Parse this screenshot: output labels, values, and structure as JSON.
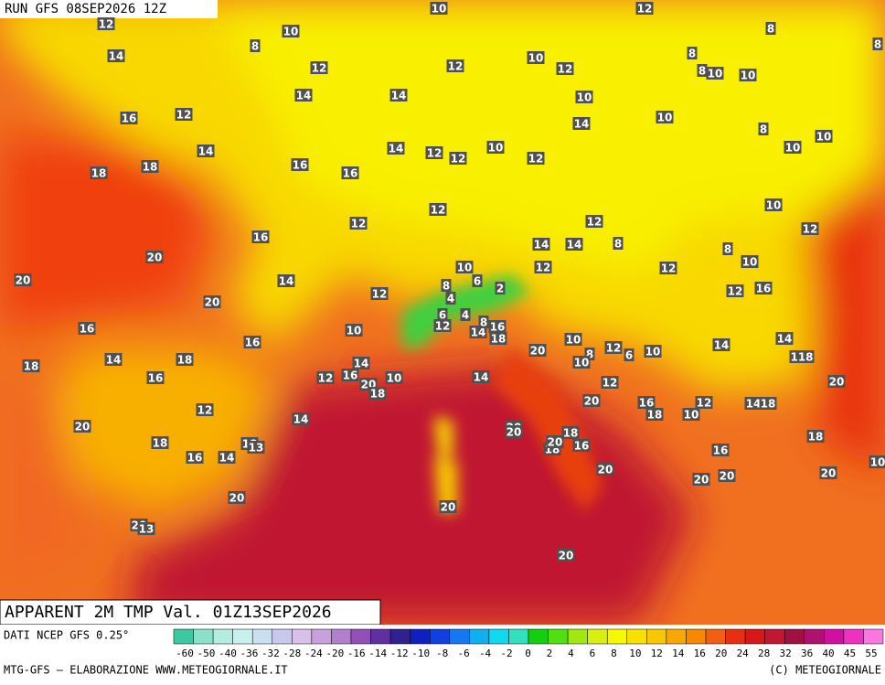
{
  "header": {
    "run": "RUN GFS 08SEP2026 12Z",
    "title": "APPARENT 2M TMP Val. 01Z13SEP2026"
  },
  "footer": {
    "source": "DATI NCEP GFS 0.25°",
    "credit": "MTG-GFS — ELABORAZIONE WWW.METEOGIORNALE.IT",
    "copyright": "(C) METEOGIORNALE"
  },
  "legend": {
    "labels": [
      -60,
      -50,
      -40,
      -36,
      -32,
      -28,
      -24,
      -20,
      -16,
      -14,
      -12,
      -10,
      -8,
      -6,
      -4,
      -2,
      0,
      2,
      4,
      6,
      8,
      10,
      12,
      14,
      16,
      20,
      24,
      28,
      32,
      36,
      40,
      45,
      55
    ],
    "colors": [
      "#3cc8a0",
      "#8ce0c8",
      "#b4ece0",
      "#c8f0ec",
      "#c8e0f0",
      "#c8c8ec",
      "#d8c0e8",
      "#c8a0dc",
      "#b080cc",
      "#9050b8",
      "#6030a0",
      "#302090",
      "#1020c0",
      "#1040e0",
      "#1478f0",
      "#10b0f0",
      "#10d8f0",
      "#30e0c0",
      "#10d010",
      "#50e010",
      "#a0e810",
      "#d8f010",
      "#f8f800",
      "#f8e000",
      "#f8c800",
      "#f8a800",
      "#f88800",
      "#f06010",
      "#e83010",
      "#d81818",
      "#c01830",
      "#a01040",
      "#b01070",
      "#d010a0",
      "#f030c0",
      "#f878e0"
    ]
  },
  "map_labels": [
    10,
    12,
    12,
    8,
    10,
    8,
    8,
    14,
    12,
    12,
    10,
    12,
    8,
    8,
    10,
    10,
    14,
    14,
    10,
    16,
    12,
    10,
    14,
    8,
    14,
    14,
    12,
    12,
    10,
    12,
    10,
    10,
    18,
    18,
    16,
    16,
    12,
    12,
    10,
    12,
    12,
    20,
    16,
    14,
    14,
    8,
    8,
    10,
    20,
    14,
    12,
    12,
    10,
    6,
    8,
    2,
    12,
    12,
    16,
    20,
    4,
    6,
    4,
    12,
    16,
    10,
    14,
    8,
    16,
    18,
    16,
    10,
    12,
    6,
    10,
    8,
    10,
    14,
    14,
    118,
    18,
    14,
    18,
    14,
    16,
    20,
    16,
    12,
    20,
    18,
    10,
    14,
    12,
    20,
    12,
    20,
    16,
    18,
    12,
    10,
    14,
    18,
    14,
    20,
    20,
    20,
    18,
    18,
    18,
    16,
    14,
    18,
    13,
    18,
    16,
    16,
    20,
    20,
    10,
    20,
    20,
    20,
    20,
    20,
    20,
    13,
    20
  ]
}
